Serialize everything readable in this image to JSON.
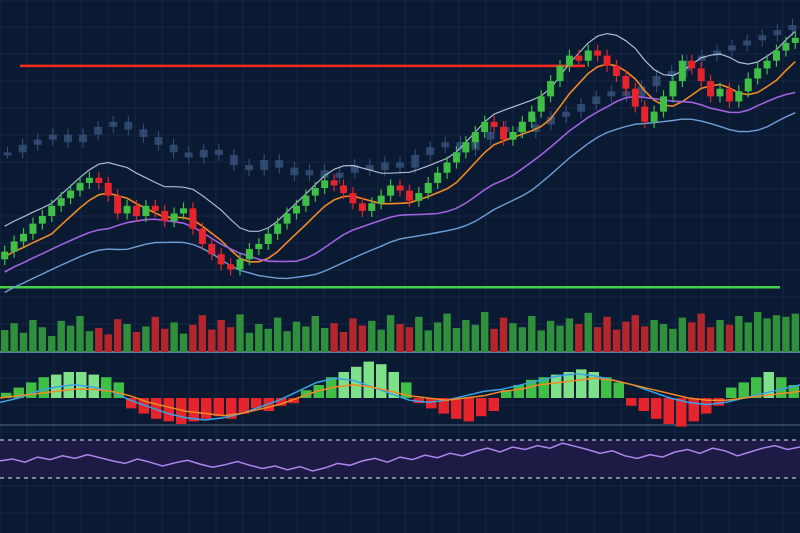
{
  "chart_data": {
    "type": "candlestick",
    "title": "",
    "xlabel": "",
    "ylabel": "",
    "grid": true,
    "legend": "none",
    "ylim": [
      0,
      100
    ],
    "colors": {
      "background": "#0b1a33",
      "grid": "#1d3253",
      "up": "#3fbf45",
      "down": "#e5252b",
      "resistance": "#ff2a1a",
      "support": "#43d14a",
      "ma_fast": "#f08a24",
      "ma_slow": "#a060e0",
      "band": "#6f9fd8",
      "ghost": "#36527a",
      "macd_line": "#3aa3e8",
      "signal_line": "#f08a24",
      "rsi_line": "#b085ee"
    },
    "candles": [
      {
        "o": 6,
        "c": 9
      },
      {
        "o": 9,
        "c": 13
      },
      {
        "o": 13,
        "c": 16
      },
      {
        "o": 16,
        "c": 20
      },
      {
        "o": 20,
        "c": 23
      },
      {
        "o": 23,
        "c": 27
      },
      {
        "o": 27,
        "c": 30
      },
      {
        "o": 30,
        "c": 33
      },
      {
        "o": 33,
        "c": 36
      },
      {
        "o": 36,
        "c": 38
      },
      {
        "o": 38,
        "c": 36
      },
      {
        "o": 36,
        "c": 31
      },
      {
        "o": 31,
        "c": 24
      },
      {
        "o": 24,
        "c": 27
      },
      {
        "o": 27,
        "c": 23
      },
      {
        "o": 23,
        "c": 27
      },
      {
        "o": 27,
        "c": 25
      },
      {
        "o": 25,
        "c": 21
      },
      {
        "o": 21,
        "c": 24
      },
      {
        "o": 24,
        "c": 26
      },
      {
        "o": 26,
        "c": 18
      },
      {
        "o": 18,
        "c": 12
      },
      {
        "o": 12,
        "c": 8
      },
      {
        "o": 8,
        "c": 4
      },
      {
        "o": 4,
        "c": 2
      },
      {
        "o": 2,
        "c": 6
      },
      {
        "o": 6,
        "c": 10
      },
      {
        "o": 10,
        "c": 12
      },
      {
        "o": 12,
        "c": 16
      },
      {
        "o": 16,
        "c": 20
      },
      {
        "o": 20,
        "c": 24
      },
      {
        "o": 24,
        "c": 27
      },
      {
        "o": 27,
        "c": 31
      },
      {
        "o": 31,
        "c": 34
      },
      {
        "o": 34,
        "c": 37
      },
      {
        "o": 37,
        "c": 35
      },
      {
        "o": 35,
        "c": 32
      },
      {
        "o": 32,
        "c": 28
      },
      {
        "o": 28,
        "c": 25
      },
      {
        "o": 25,
        "c": 28
      },
      {
        "o": 28,
        "c": 31
      },
      {
        "o": 31,
        "c": 35
      },
      {
        "o": 35,
        "c": 33
      },
      {
        "o": 33,
        "c": 29
      },
      {
        "o": 29,
        "c": 32
      },
      {
        "o": 32,
        "c": 36
      },
      {
        "o": 36,
        "c": 40
      },
      {
        "o": 40,
        "c": 44
      },
      {
        "o": 44,
        "c": 48
      },
      {
        "o": 48,
        "c": 52
      },
      {
        "o": 52,
        "c": 56
      },
      {
        "o": 56,
        "c": 60
      },
      {
        "o": 60,
        "c": 58
      },
      {
        "o": 58,
        "c": 53
      },
      {
        "o": 53,
        "c": 56
      },
      {
        "o": 56,
        "c": 60
      },
      {
        "o": 60,
        "c": 64
      },
      {
        "o": 64,
        "c": 70
      },
      {
        "o": 70,
        "c": 76
      },
      {
        "o": 76,
        "c": 82
      },
      {
        "o": 82,
        "c": 86
      },
      {
        "o": 86,
        "c": 84
      },
      {
        "o": 84,
        "c": 88
      },
      {
        "o": 88,
        "c": 86
      },
      {
        "o": 86,
        "c": 82
      },
      {
        "o": 82,
        "c": 78
      },
      {
        "o": 78,
        "c": 73
      },
      {
        "o": 73,
        "c": 66
      },
      {
        "o": 66,
        "c": 60
      },
      {
        "o": 60,
        "c": 64
      },
      {
        "o": 64,
        "c": 70
      },
      {
        "o": 70,
        "c": 76
      },
      {
        "o": 76,
        "c": 84
      },
      {
        "o": 84,
        "c": 81
      },
      {
        "o": 81,
        "c": 76
      },
      {
        "o": 76,
        "c": 70
      },
      {
        "o": 70,
        "c": 73
      },
      {
        "o": 73,
        "c": 68
      },
      {
        "o": 68,
        "c": 72
      },
      {
        "o": 72,
        "c": 77
      },
      {
        "o": 77,
        "c": 81
      },
      {
        "o": 81,
        "c": 84
      },
      {
        "o": 84,
        "c": 88
      },
      {
        "o": 88,
        "c": 91
      },
      {
        "o": 91,
        "c": 93
      }
    ],
    "resistance_level": 82,
    "support_level": -5,
    "ghost_values": [
      48,
      51,
      53,
      55,
      52,
      55,
      58,
      60,
      57,
      54,
      51,
      48,
      46,
      49,
      47,
      43,
      41,
      45,
      42,
      39,
      41,
      38,
      40,
      43,
      41,
      44,
      42,
      47,
      50,
      52,
      49,
      53,
      56,
      58,
      56,
      59,
      62,
      64,
      67,
      70,
      72,
      70,
      74,
      78,
      80,
      84,
      86,
      88,
      90,
      92,
      94,
      96,
      98
    ],
    "volume": [
      55,
      72,
      48,
      80,
      62,
      40,
      78,
      66,
      90,
      52,
      60,
      44,
      82,
      70,
      50,
      64,
      88,
      58,
      74,
      46,
      68,
      92,
      56,
      80,
      62,
      94,
      48,
      70,
      58,
      86,
      52,
      76,
      64,
      90,
      60,
      72,
      50,
      84,
      66,
      78,
      56,
      92,
      70,
      62,
      88,
      54,
      74,
      96,
      60,
      80,
      68,
      100,
      58,
      86,
      72,
      62,
      90,
      54,
      78,
      66,
      84,
      70,
      98,
      62,
      88,
      56,
      76,
      92,
      64,
      80,
      70,
      58,
      86,
      74,
      96,
      62,
      80,
      68,
      90,
      74,
      100,
      84,
      92,
      88,
      96
    ],
    "macd_hist": [
      2,
      4,
      6,
      8,
      9,
      10,
      10,
      9,
      8,
      6,
      -4,
      -6,
      -8,
      -9,
      -10,
      -9,
      -8,
      -7,
      -8,
      -6,
      -4,
      -5,
      -3,
      -2,
      3,
      5,
      8,
      10,
      12,
      14,
      13,
      10,
      6,
      -2,
      -4,
      -6,
      -8,
      -9,
      -7,
      -5,
      3,
      5,
      7,
      8,
      9,
      10,
      11,
      10,
      8,
      6,
      -3,
      -5,
      -8,
      -10,
      -11,
      -9,
      -6,
      -3,
      4,
      6,
      8,
      10,
      8,
      5
    ],
    "macd_line": [
      -2,
      0,
      3,
      5,
      6,
      5,
      3,
      -1,
      -4,
      -7,
      -9,
      -10,
      -9,
      -7,
      -4,
      -1,
      3,
      7,
      9,
      8,
      5,
      2,
      -1,
      -2,
      -1,
      1,
      3,
      4,
      6,
      8,
      10,
      11,
      10,
      8,
      6,
      3,
      0,
      -2,
      -3,
      -2,
      0,
      2,
      4,
      6
    ],
    "signal_line": [
      0,
      1,
      2,
      3,
      4,
      4,
      3,
      1,
      -2,
      -4,
      -6,
      -7,
      -8,
      -7,
      -5,
      -3,
      0,
      3,
      5,
      6,
      5,
      3,
      1,
      0,
      -1,
      0,
      1,
      3,
      4,
      6,
      7,
      8,
      9,
      8,
      6,
      4,
      2,
      0,
      -1,
      -1,
      0,
      1,
      2,
      3
    ],
    "rsi": [
      52,
      55,
      50,
      58,
      54,
      60,
      56,
      62,
      57,
      52,
      48,
      55,
      50,
      44,
      49,
      53,
      47,
      42,
      46,
      51,
      45,
      40,
      44,
      38,
      43,
      36,
      41,
      48,
      45,
      52,
      56,
      50,
      58,
      54,
      61,
      57,
      64,
      60,
      67,
      72,
      66,
      74,
      70,
      76,
      72,
      80,
      75,
      70,
      64,
      68,
      60,
      56,
      62,
      58,
      66,
      70,
      64,
      72,
      68,
      60,
      66,
      72,
      76,
      70,
      74
    ]
  }
}
